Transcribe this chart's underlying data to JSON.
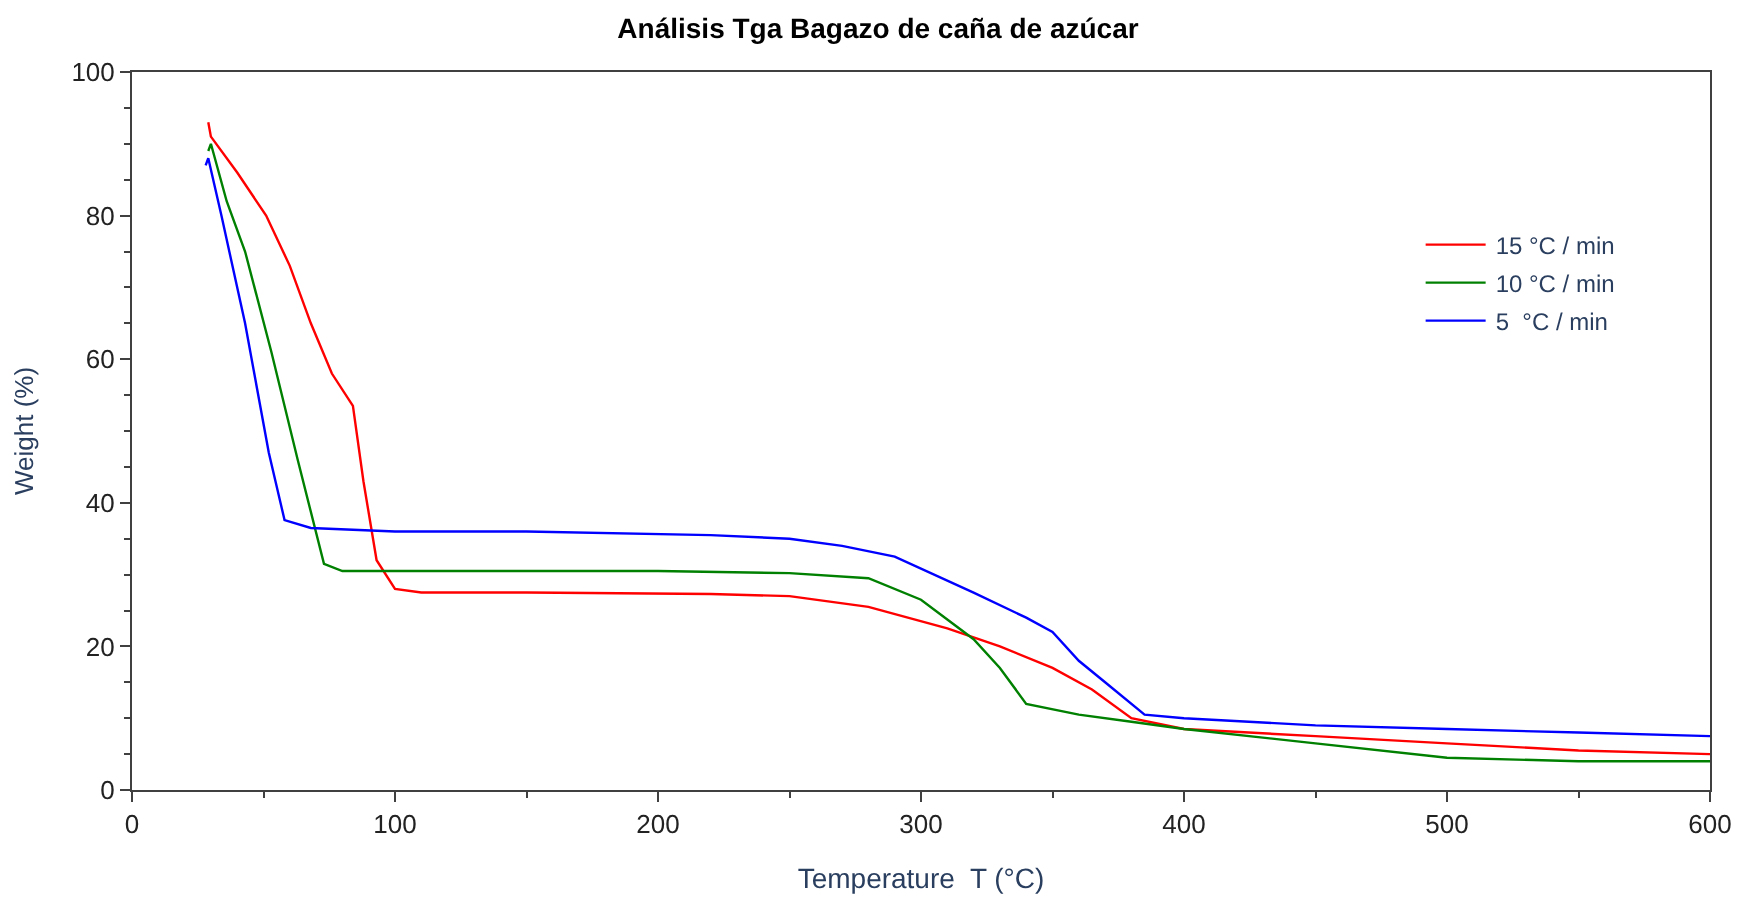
{
  "chart_data": {
    "type": "line",
    "title": "Análisis Tga Bagazo de caña de azúcar",
    "xlabel": "Temperature  T (°C)",
    "ylabel": "Weight (%)",
    "xlim": [
      0,
      600
    ],
    "xticks": [
      0,
      100,
      200,
      300,
      400,
      500,
      600
    ],
    "ylim": [
      0,
      100
    ],
    "yticks": [
      0,
      20,
      40,
      60,
      80,
      100
    ],
    "legend": "top right",
    "marker": "none",
    "line_style": "solid",
    "series": [
      {
        "name": "15 °C / min",
        "color": "#ff0000",
        "x": [
          29,
          30,
          40,
          51,
          60,
          68,
          76,
          84,
          88,
          93,
          100,
          110,
          150,
          220,
          250,
          280,
          310,
          330,
          350,
          365,
          380,
          400,
          450,
          500,
          550,
          600
        ],
        "values": [
          93,
          91,
          86,
          80,
          73,
          65,
          58,
          53.5,
          43,
          32,
          28,
          27.5,
          27.5,
          27.3,
          27,
          25.5,
          22.5,
          20,
          17,
          14,
          10,
          8.5,
          7.5,
          6.5,
          5.5,
          5
        ]
      },
      {
        "name": "10 °C / min",
        "color": "#008000",
        "x": [
          29,
          30,
          36,
          43,
          53,
          63,
          73,
          80,
          100,
          200,
          250,
          280,
          300,
          320,
          330,
          340,
          360,
          380,
          400,
          450,
          500,
          550,
          600
        ],
        "values": [
          89,
          90,
          82,
          75,
          61,
          46,
          31.5,
          30.5,
          30.5,
          30.5,
          30.2,
          29.5,
          26.5,
          21,
          17,
          12,
          10.5,
          9.5,
          8.5,
          6.5,
          4.5,
          4,
          4
        ]
      },
      {
        "name": "5  °C / min",
        "color": "#0000ff",
        "x": [
          28,
          29,
          34,
          43,
          52,
          58,
          68,
          100,
          150,
          220,
          250,
          270,
          290,
          320,
          340,
          350,
          360,
          370,
          385,
          400,
          450,
          500,
          550,
          600
        ],
        "values": [
          87,
          88,
          80,
          65,
          47,
          37.6,
          36.5,
          36,
          36,
          35.5,
          35,
          34,
          32.5,
          27.5,
          24,
          22,
          18,
          15,
          10.5,
          10,
          9,
          8.5,
          8,
          7.5
        ]
      }
    ]
  }
}
